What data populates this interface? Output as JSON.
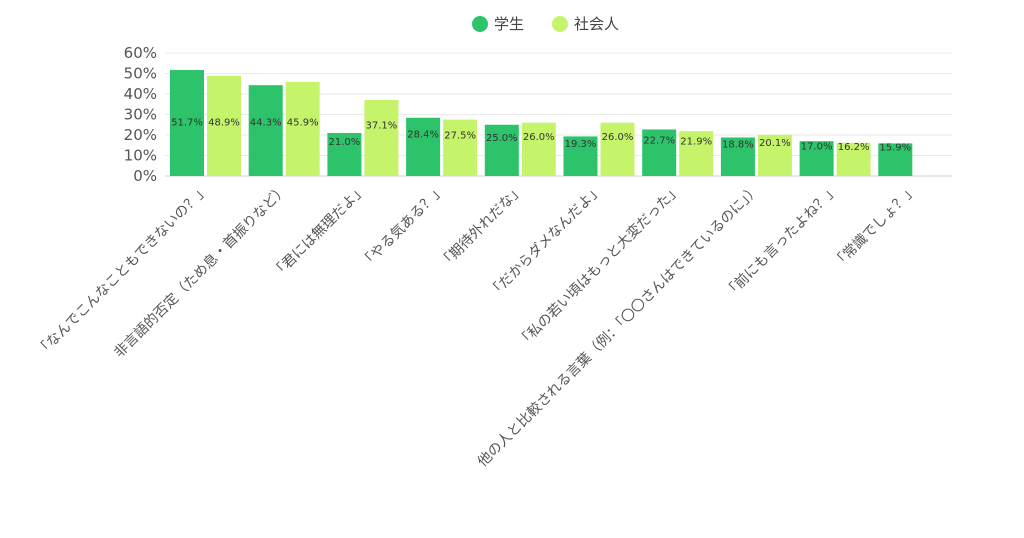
{
  "chart_data": {
    "type": "bar",
    "title": "",
    "xlabel": "",
    "ylabel": "",
    "ylim": [
      0,
      60
    ],
    "yticks": [
      0,
      10,
      20,
      30,
      40,
      50,
      60
    ],
    "ytick_labels": [
      "0%",
      "10%",
      "20%",
      "30%",
      "40%",
      "50%",
      "60%"
    ],
    "grid": "horizontal",
    "legend_position": "top",
    "categories": [
      "「なんでこんなこともできないの？」",
      "非言語的否定（ため息・首振りなど）",
      "「君には無理だよ」",
      "「やる気ある？」",
      "「期待外れだな」",
      "「だからダメなんだよ」",
      "「私の若い頃はもっと大変だった」",
      "他の人と比較される言葉（例：「〇〇さんはできているのに」）",
      "「前にも言ったよね？」",
      "「常識でしょ？」"
    ],
    "series": [
      {
        "name": "学生",
        "color": "#2dc36a",
        "values": [
          51.7,
          44.3,
          21.0,
          28.4,
          25.0,
          19.3,
          22.7,
          18.8,
          17.0,
          15.9
        ],
        "labels": [
          "51.7%",
          "44.3%",
          "21.0%",
          "28.4%",
          "25.0%",
          "19.3%",
          "22.7%",
          "18.8%",
          "17.0%",
          "15.9%"
        ]
      },
      {
        "name": "社会人",
        "color": "#c5f46a",
        "values": [
          48.9,
          45.9,
          37.1,
          27.5,
          26.0,
          26.0,
          21.9,
          20.1,
          16.2,
          null
        ],
        "labels": [
          "48.9%",
          "45.9%",
          "37.1%",
          "27.5%",
          "26.0%",
          "26.0%",
          "21.9%",
          "20.1%",
          "16.2%",
          null
        ]
      }
    ]
  }
}
